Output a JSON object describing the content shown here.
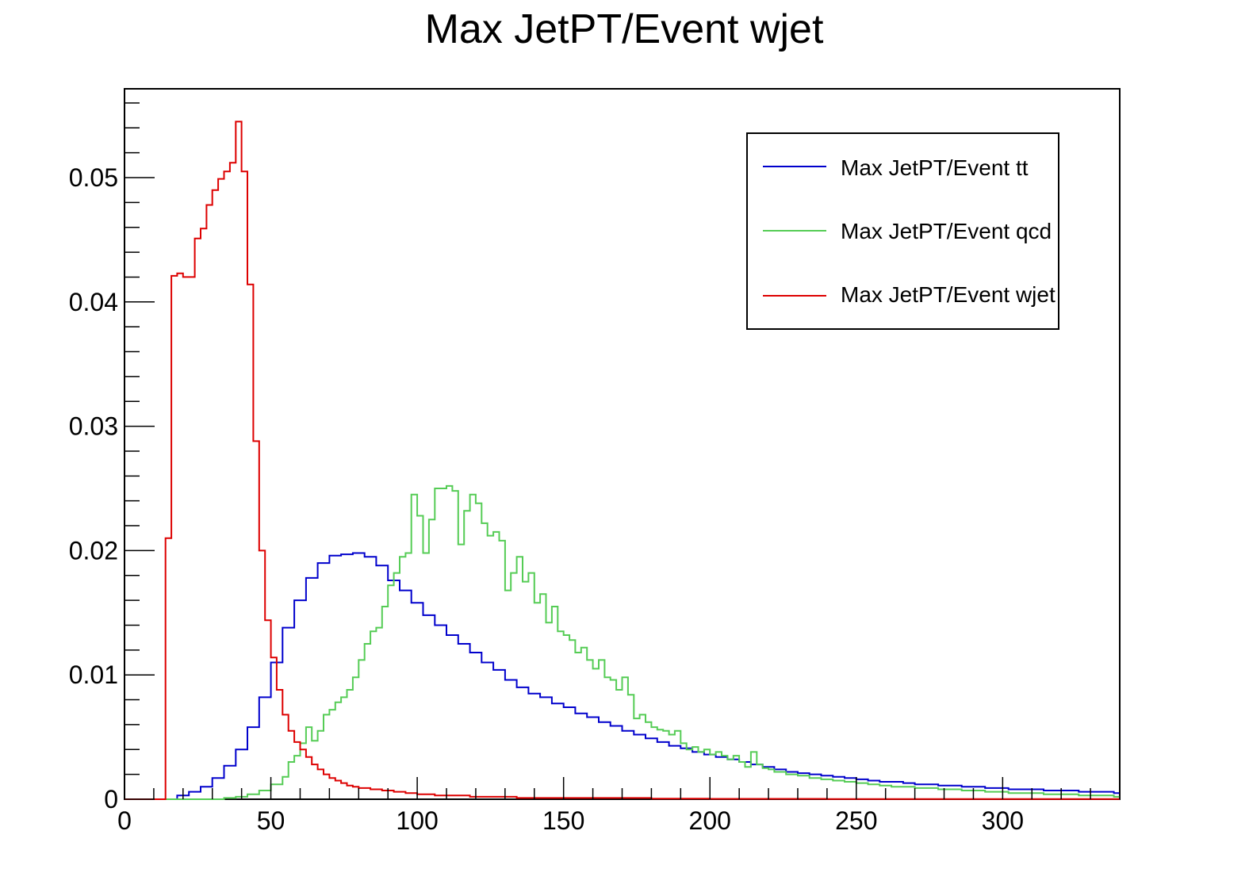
{
  "chart_data": {
    "type": "histogram",
    "title": "Max JetPT/Event wjet",
    "xlabel": "",
    "ylabel": "",
    "xlim": [
      0,
      340
    ],
    "ylim": [
      0,
      0.057
    ],
    "x_ticks": [
      0,
      50,
      100,
      150,
      200,
      250,
      300
    ],
    "x_tick_labels": [
      "0",
      "50",
      "100",
      "150",
      "200",
      "250",
      "300"
    ],
    "y_ticks": [
      0,
      0.01,
      0.02,
      0.03,
      0.04,
      0.05
    ],
    "y_tick_labels": [
      "0",
      "0.01",
      "0.02",
      "0.03",
      "0.04",
      "0.05"
    ],
    "grid": false,
    "legend_position": "top-right",
    "bin_width": 2,
    "series": [
      {
        "name": "Max JetPT/Event tt",
        "color": "#0000cc",
        "points": [
          [
            0,
            0
          ],
          [
            14,
            0
          ],
          [
            18,
            0.0003
          ],
          [
            22,
            0.0006
          ],
          [
            26,
            0.001
          ],
          [
            30,
            0.0017
          ],
          [
            34,
            0.0027
          ],
          [
            38,
            0.004
          ],
          [
            42,
            0.0058
          ],
          [
            46,
            0.0082
          ],
          [
            50,
            0.011
          ],
          [
            54,
            0.0138
          ],
          [
            58,
            0.016
          ],
          [
            62,
            0.0178
          ],
          [
            66,
            0.019
          ],
          [
            70,
            0.0196
          ],
          [
            74,
            0.0197
          ],
          [
            78,
            0.0198
          ],
          [
            82,
            0.0195
          ],
          [
            86,
            0.0188
          ],
          [
            90,
            0.0176
          ],
          [
            94,
            0.0168
          ],
          [
            98,
            0.0158
          ],
          [
            102,
            0.0148
          ],
          [
            106,
            0.014
          ],
          [
            110,
            0.0132
          ],
          [
            114,
            0.0125
          ],
          [
            118,
            0.0118
          ],
          [
            122,
            0.011
          ],
          [
            126,
            0.0104
          ],
          [
            130,
            0.0096
          ],
          [
            134,
            0.009
          ],
          [
            138,
            0.0085
          ],
          [
            142,
            0.0082
          ],
          [
            146,
            0.0077
          ],
          [
            150,
            0.0074
          ],
          [
            154,
            0.0069
          ],
          [
            158,
            0.0066
          ],
          [
            162,
            0.0062
          ],
          [
            166,
            0.0059
          ],
          [
            170,
            0.0055
          ],
          [
            174,
            0.0052
          ],
          [
            178,
            0.0049
          ],
          [
            182,
            0.0046
          ],
          [
            186,
            0.0043
          ],
          [
            190,
            0.0041
          ],
          [
            194,
            0.0038
          ],
          [
            198,
            0.0036
          ],
          [
            202,
            0.0034
          ],
          [
            206,
            0.0032
          ],
          [
            210,
            0.003
          ],
          [
            214,
            0.0028
          ],
          [
            218,
            0.0026
          ],
          [
            222,
            0.0024
          ],
          [
            226,
            0.0022
          ],
          [
            230,
            0.0021
          ],
          [
            234,
            0.002
          ],
          [
            238,
            0.0019
          ],
          [
            242,
            0.0018
          ],
          [
            246,
            0.0017
          ],
          [
            250,
            0.0016
          ],
          [
            254,
            0.0015
          ],
          [
            258,
            0.0014
          ],
          [
            262,
            0.0014
          ],
          [
            266,
            0.0013
          ],
          [
            270,
            0.0012
          ],
          [
            274,
            0.0012
          ],
          [
            278,
            0.0011
          ],
          [
            282,
            0.0011
          ],
          [
            286,
            0.001
          ],
          [
            290,
            0.001
          ],
          [
            294,
            0.0009
          ],
          [
            298,
            0.0009
          ],
          [
            302,
            0.0008
          ],
          [
            306,
            0.0008
          ],
          [
            310,
            0.0008
          ],
          [
            314,
            0.0007
          ],
          [
            318,
            0.0007
          ],
          [
            322,
            0.0007
          ],
          [
            326,
            0.0006
          ],
          [
            330,
            0.0006
          ],
          [
            334,
            0.0006
          ],
          [
            338,
            0.0005
          ],
          [
            340,
            0.0005
          ]
        ]
      },
      {
        "name": "Max JetPT/Event qcd",
        "color": "#55cc55",
        "points": [
          [
            0,
            0
          ],
          [
            30,
            0
          ],
          [
            34,
            0.0001
          ],
          [
            38,
            0.0002
          ],
          [
            42,
            0.0004
          ],
          [
            46,
            0.0007
          ],
          [
            50,
            0.0012
          ],
          [
            54,
            0.0018
          ],
          [
            56,
            0.003
          ],
          [
            58,
            0.0035
          ],
          [
            60,
            0.0045
          ],
          [
            62,
            0.0058
          ],
          [
            64,
            0.0047
          ],
          [
            66,
            0.0055
          ],
          [
            68,
            0.0068
          ],
          [
            70,
            0.0072
          ],
          [
            72,
            0.0078
          ],
          [
            74,
            0.0082
          ],
          [
            76,
            0.0088
          ],
          [
            78,
            0.0098
          ],
          [
            80,
            0.0112
          ],
          [
            82,
            0.0125
          ],
          [
            84,
            0.0135
          ],
          [
            86,
            0.0138
          ],
          [
            88,
            0.0155
          ],
          [
            90,
            0.0172
          ],
          [
            92,
            0.0182
          ],
          [
            94,
            0.0195
          ],
          [
            96,
            0.0198
          ],
          [
            98,
            0.0245
          ],
          [
            100,
            0.0228
          ],
          [
            102,
            0.0198
          ],
          [
            104,
            0.0225
          ],
          [
            106,
            0.025
          ],
          [
            108,
            0.025
          ],
          [
            110,
            0.0252
          ],
          [
            112,
            0.0248
          ],
          [
            114,
            0.0205
          ],
          [
            116,
            0.0232
          ],
          [
            118,
            0.0245
          ],
          [
            120,
            0.0238
          ],
          [
            122,
            0.0222
          ],
          [
            124,
            0.0212
          ],
          [
            126,
            0.0215
          ],
          [
            128,
            0.0208
          ],
          [
            130,
            0.0168
          ],
          [
            132,
            0.0182
          ],
          [
            134,
            0.0195
          ],
          [
            136,
            0.0175
          ],
          [
            138,
            0.0182
          ],
          [
            140,
            0.0158
          ],
          [
            142,
            0.0165
          ],
          [
            144,
            0.0142
          ],
          [
            146,
            0.0155
          ],
          [
            148,
            0.0135
          ],
          [
            150,
            0.0132
          ],
          [
            152,
            0.0128
          ],
          [
            154,
            0.0118
          ],
          [
            156,
            0.0122
          ],
          [
            158,
            0.0112
          ],
          [
            160,
            0.0105
          ],
          [
            162,
            0.0112
          ],
          [
            164,
            0.0098
          ],
          [
            166,
            0.0096
          ],
          [
            168,
            0.0088
          ],
          [
            170,
            0.0098
          ],
          [
            172,
            0.0084
          ],
          [
            174,
            0.0065
          ],
          [
            176,
            0.0068
          ],
          [
            178,
            0.0062
          ],
          [
            180,
            0.0058
          ],
          [
            182,
            0.0056
          ],
          [
            184,
            0.0055
          ],
          [
            186,
            0.0052
          ],
          [
            188,
            0.0055
          ],
          [
            190,
            0.0045
          ],
          [
            192,
            0.004
          ],
          [
            194,
            0.0042
          ],
          [
            196,
            0.0038
          ],
          [
            198,
            0.004
          ],
          [
            200,
            0.0036
          ],
          [
            202,
            0.0038
          ],
          [
            204,
            0.0035
          ],
          [
            206,
            0.0032
          ],
          [
            208,
            0.0035
          ],
          [
            210,
            0.003
          ],
          [
            212,
            0.0026
          ],
          [
            214,
            0.0038
          ],
          [
            216,
            0.0028
          ],
          [
            218,
            0.0025
          ],
          [
            220,
            0.0024
          ],
          [
            222,
            0.0022
          ],
          [
            226,
            0.002
          ],
          [
            230,
            0.0019
          ],
          [
            234,
            0.0017
          ],
          [
            238,
            0.0016
          ],
          [
            242,
            0.0015
          ],
          [
            246,
            0.0014
          ],
          [
            250,
            0.0013
          ],
          [
            254,
            0.0012
          ],
          [
            258,
            0.0011
          ],
          [
            262,
            0.001
          ],
          [
            266,
            0.001
          ],
          [
            270,
            0.0009
          ],
          [
            274,
            0.0009
          ],
          [
            278,
            0.0008
          ],
          [
            282,
            0.0008
          ],
          [
            286,
            0.0007
          ],
          [
            290,
            0.0007
          ],
          [
            294,
            0.0006
          ],
          [
            298,
            0.0006
          ],
          [
            302,
            0.0005
          ],
          [
            306,
            0.0005
          ],
          [
            310,
            0.0005
          ],
          [
            314,
            0.0004
          ],
          [
            318,
            0.0004
          ],
          [
            322,
            0.0004
          ],
          [
            326,
            0.0003
          ],
          [
            330,
            0.0003
          ],
          [
            334,
            0.0003
          ],
          [
            338,
            0.0002
          ],
          [
            340,
            0.0002
          ]
        ]
      },
      {
        "name": "Max JetPT/Event wjet",
        "color": "#dd0000",
        "points": [
          [
            0,
            0
          ],
          [
            14,
            0
          ],
          [
            14,
            0.021
          ],
          [
            16,
            0.0421
          ],
          [
            18,
            0.0423
          ],
          [
            20,
            0.042
          ],
          [
            22,
            0.042
          ],
          [
            24,
            0.0451
          ],
          [
            26,
            0.0459
          ],
          [
            28,
            0.0478
          ],
          [
            30,
            0.049
          ],
          [
            32,
            0.0499
          ],
          [
            34,
            0.0505
          ],
          [
            36,
            0.0512
          ],
          [
            38,
            0.0545
          ],
          [
            40,
            0.0505
          ],
          [
            42,
            0.0414
          ],
          [
            44,
            0.0288
          ],
          [
            46,
            0.02
          ],
          [
            48,
            0.0144
          ],
          [
            50,
            0.0114
          ],
          [
            52,
            0.0088
          ],
          [
            54,
            0.0068
          ],
          [
            56,
            0.0055
          ],
          [
            58,
            0.0046
          ],
          [
            60,
            0.004
          ],
          [
            62,
            0.0034
          ],
          [
            64,
            0.0028
          ],
          [
            66,
            0.0024
          ],
          [
            68,
            0.002
          ],
          [
            70,
            0.0017
          ],
          [
            72,
            0.0015
          ],
          [
            74,
            0.0013
          ],
          [
            76,
            0.0011
          ],
          [
            78,
            0.001
          ],
          [
            80,
            0.0009
          ],
          [
            84,
            0.0008
          ],
          [
            88,
            0.0007
          ],
          [
            92,
            0.0006
          ],
          [
            96,
            0.0005
          ],
          [
            100,
            0.0004
          ],
          [
            106,
            0.0003
          ],
          [
            112,
            0.0003
          ],
          [
            118,
            0.0002
          ],
          [
            126,
            0.0002
          ],
          [
            134,
            0.0001
          ],
          [
            145,
            0.0001
          ],
          [
            160,
            0.0001
          ],
          [
            180,
            5e-05
          ],
          [
            200,
            3e-05
          ],
          [
            240,
            2e-05
          ],
          [
            280,
            1e-05
          ],
          [
            340,
            1e-05
          ]
        ]
      }
    ]
  }
}
